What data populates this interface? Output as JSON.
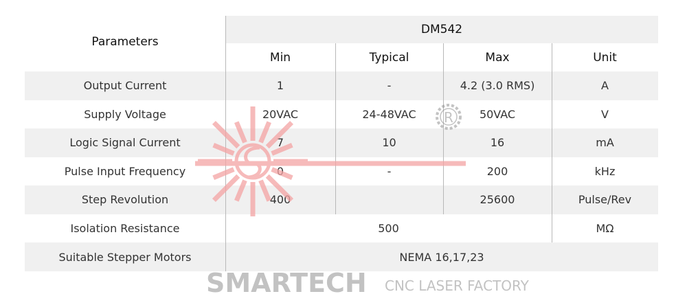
{
  "table": {
    "param_header": "Parameters",
    "model": "DM542",
    "columns": [
      "Min",
      "Typical",
      "Max",
      "Unit"
    ],
    "rows": [
      {
        "param": "Output Current",
        "min": "1",
        "typical": "-",
        "max": "4.2 (3.0 RMS)",
        "unit": "A"
      },
      {
        "param": "Supply Voltage",
        "min": "20VAC",
        "typical": "24-48VAC",
        "max": "50VAC",
        "unit": "V"
      },
      {
        "param": "Logic Signal Current",
        "min": "7",
        "typical": "10",
        "max": "16",
        "unit": "mA"
      },
      {
        "param": "Pulse Input Frequency",
        "min": "0",
        "typical": "-",
        "max": "200",
        "unit": "kHz"
      },
      {
        "param": "Step Revolution",
        "min": "400",
        "typical": "",
        "max": "25600",
        "unit": "Pulse/Rev"
      },
      {
        "param": "Isolation Resistance",
        "span_value": "500",
        "unit": "MΩ"
      },
      {
        "param": "Suitable Stepper Motors",
        "full_value": "NEMA 16,17,23"
      }
    ]
  },
  "watermark": {
    "brand": "SMARTECH",
    "tagline": "CNC LASER FACTORY",
    "mark": "R",
    "color": "#f4a3a3"
  }
}
